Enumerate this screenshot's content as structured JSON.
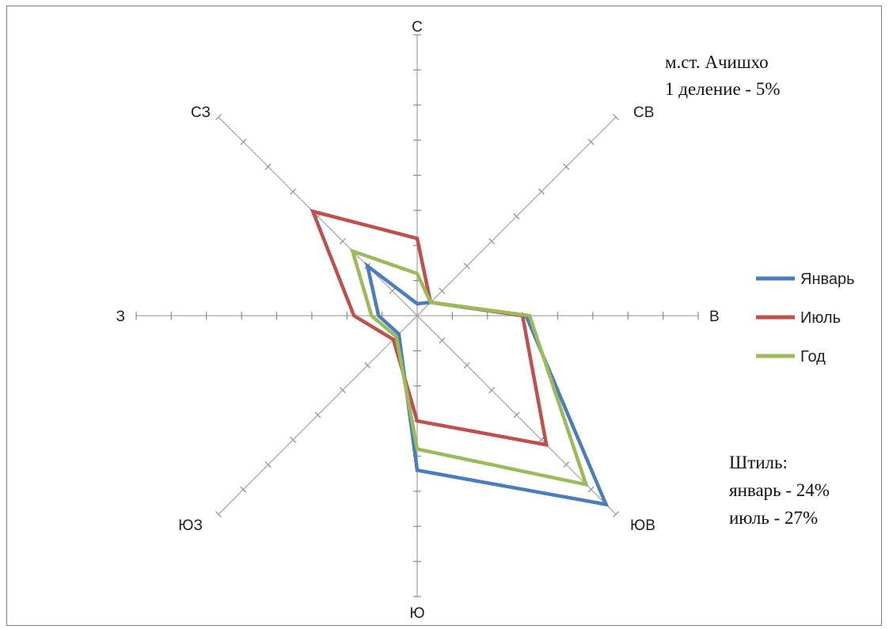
{
  "chart_data": {
    "type": "radar",
    "unit": "%",
    "directions": [
      "С",
      "СВ",
      "В",
      "ЮВ",
      "Ю",
      "ЮЗ",
      "З",
      "СЗ"
    ],
    "max": 40,
    "tick_step": 5,
    "series": [
      {
        "name": "Январь",
        "color": "#4a7dbd",
        "values": [
          1.7,
          2.7,
          15.5,
          38,
          22,
          3.7,
          5.5,
          10
        ]
      },
      {
        "name": "Июль",
        "color": "#c0504d",
        "values": [
          11,
          2.7,
          15,
          26,
          15,
          4.8,
          9,
          21
        ]
      },
      {
        "name": "Год",
        "color": "#9bbb59",
        "values": [
          6,
          2.7,
          16,
          34,
          19,
          4.2,
          6.5,
          13
        ]
      }
    ],
    "annotations": {
      "station": "м.ст. Ачишхо",
      "scale": "1 деление - 5%",
      "calm_title": "Штиль:",
      "calm_january": "январь - 24%",
      "calm_july": "июль - 27%"
    }
  }
}
